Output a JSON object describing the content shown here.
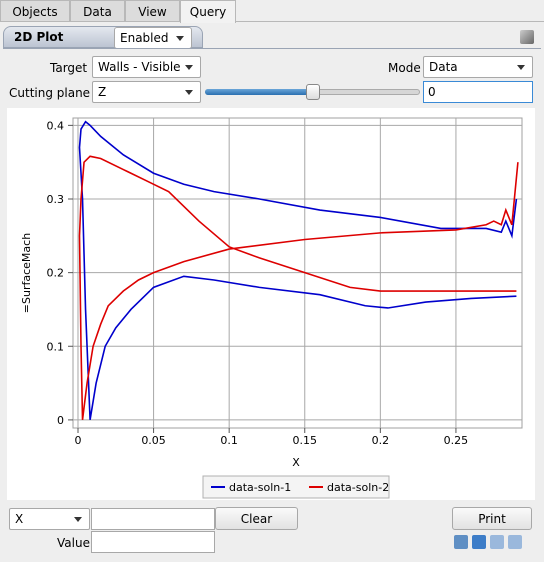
{
  "tabs": [
    "Objects",
    "Data",
    "View",
    "Query"
  ],
  "panel": {
    "title": "2D Plot",
    "state": "Enabled"
  },
  "controls": {
    "target_label": "Target",
    "target_value": "Walls - Visible",
    "mode_label": "Mode",
    "mode_value": "Data",
    "cutting_label": "Cutting plane",
    "cutting_axis": "Z",
    "cutting_value": "0"
  },
  "chart_data": {
    "type": "line",
    "x_label": "X",
    "y_label": "=SurfaceMach",
    "xlim": [
      -0.0033,
      0.2937
    ],
    "ylim": [
      -0.011,
      0.41
    ],
    "xticks": [
      0,
      0.05,
      0.1,
      0.15,
      0.2,
      0.25
    ],
    "yticks": [
      0,
      0.1,
      0.2,
      0.3,
      0.4
    ],
    "grid": true,
    "series": [
      {
        "name": "data-soln-1",
        "color": "#0000cc",
        "x": [
          0.29,
          0.26,
          0.23,
          0.205,
          0.19,
          0.16,
          0.12,
          0.09,
          0.07,
          0.05,
          0.035,
          0.025,
          0.018,
          0.012,
          0.008,
          0.005,
          0.003,
          0.001,
          0.002,
          0.005,
          0.008,
          0.015,
          0.03,
          0.05,
          0.07,
          0.09,
          0.12,
          0.16,
          0.2,
          0.24,
          0.27,
          0.28,
          0.283,
          0.287,
          0.29
        ],
        "values": [
          0.168,
          0.165,
          0.16,
          0.152,
          0.155,
          0.17,
          0.18,
          0.19,
          0.195,
          0.18,
          0.15,
          0.125,
          0.1,
          0.05,
          0,
          0.15,
          0.3,
          0.37,
          0.395,
          0.405,
          0.4,
          0.385,
          0.36,
          0.335,
          0.32,
          0.31,
          0.3,
          0.285,
          0.275,
          0.26,
          0.26,
          0.255,
          0.27,
          0.25,
          0.3
        ]
      },
      {
        "name": "data-soln-2",
        "color": "#dd0000",
        "x": [
          0.29,
          0.25,
          0.2,
          0.18,
          0.15,
          0.12,
          0.1,
          0.08,
          0.06,
          0.045,
          0.03,
          0.015,
          0.008,
          0.004,
          0.002,
          0.001,
          0.002,
          0.003,
          0.006,
          0.01,
          0.015,
          0.02,
          0.03,
          0.04,
          0.05,
          0.07,
          0.1,
          0.15,
          0.2,
          0.25,
          0.27,
          0.275,
          0.28,
          0.283,
          0.287,
          0.291
        ],
        "values": [
          0.175,
          0.175,
          0.175,
          0.18,
          0.2,
          0.22,
          0.235,
          0.27,
          0.31,
          0.325,
          0.34,
          0.355,
          0.358,
          0.35,
          0.3,
          0.25,
          0.1,
          0,
          0.05,
          0.1,
          0.13,
          0.155,
          0.175,
          0.19,
          0.2,
          0.215,
          0.232,
          0.245,
          0.254,
          0.258,
          0.265,
          0.27,
          0.265,
          0.285,
          0.265,
          0.35
        ]
      }
    ]
  },
  "query": {
    "variable": "X",
    "clear": "Clear",
    "print": "Print",
    "value_label": "Value"
  }
}
